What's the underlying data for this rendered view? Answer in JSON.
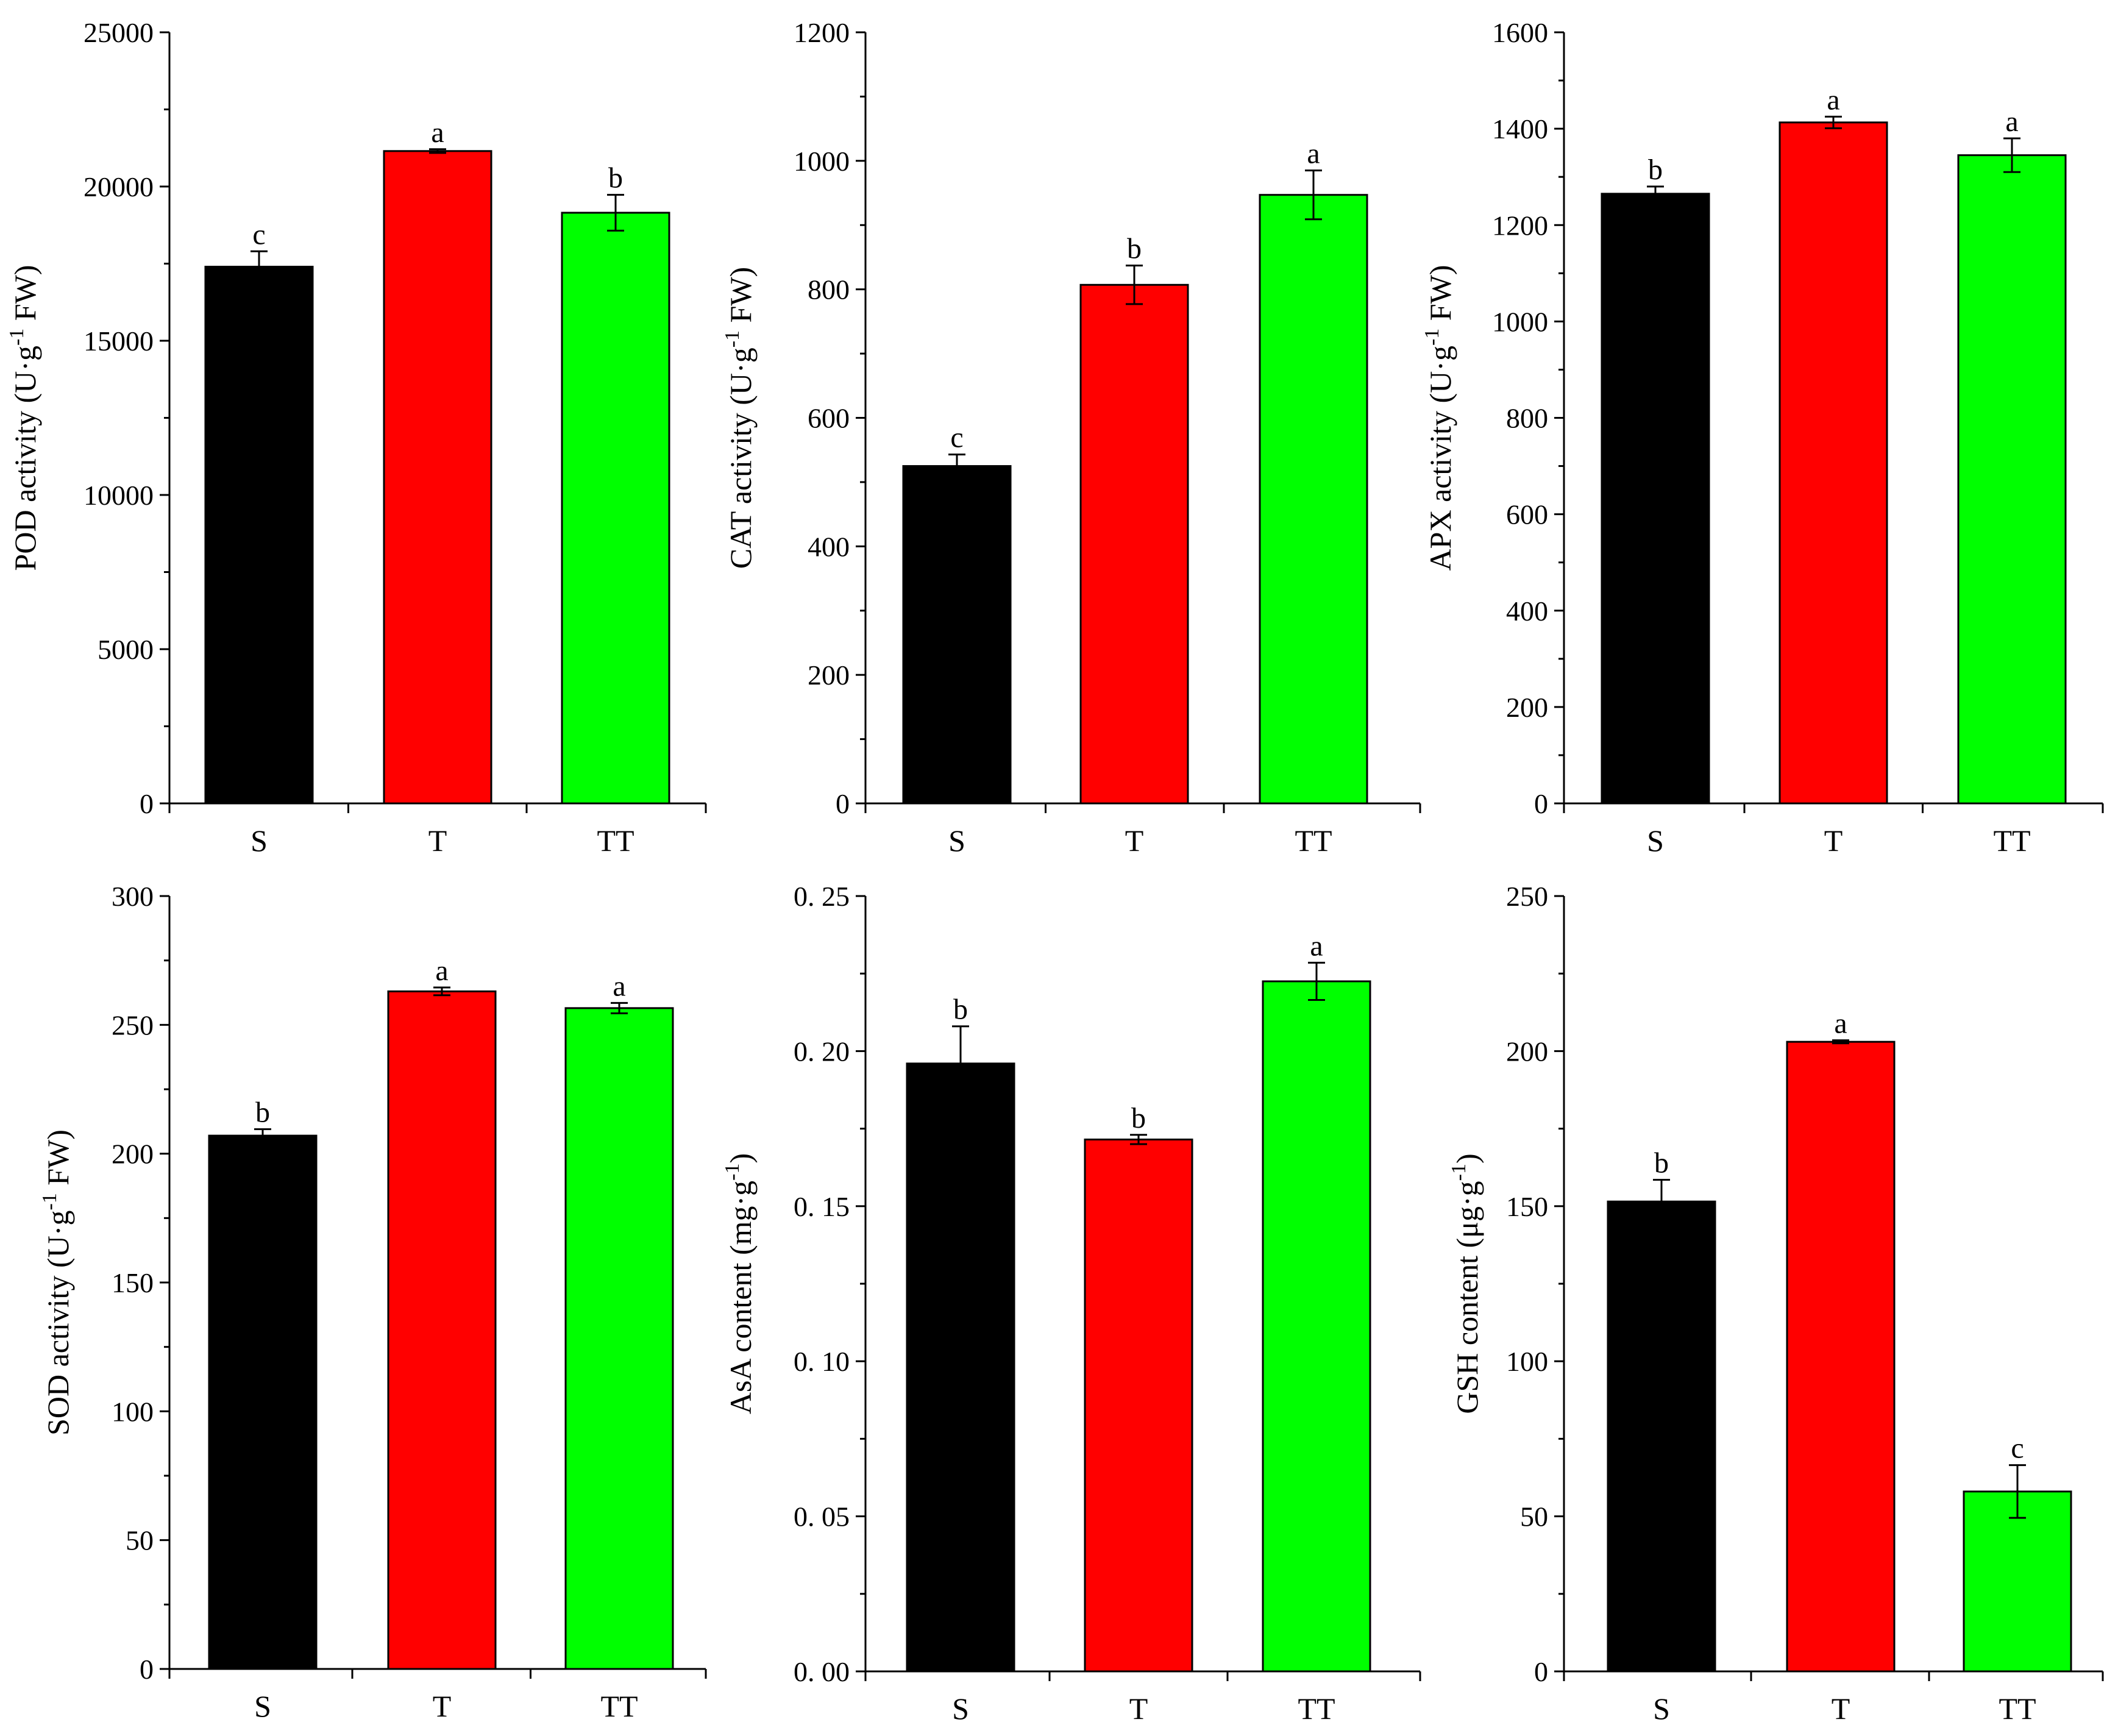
{
  "colors": {
    "S": "#000000",
    "T": "#ff0000",
    "TT": "#00ff00",
    "axis": "#000000"
  },
  "chart_data": [
    {
      "id": "pod",
      "type": "bar",
      "ylabel_prefix": "POD activity (U·g",
      "ylabel_sup": "-1",
      "ylabel_suffix": " FW)",
      "categories": [
        "S",
        "T",
        "TT"
      ],
      "values": [
        17400,
        21150,
        19150
      ],
      "errors": [
        500,
        60,
        580
      ],
      "letters": [
        "c",
        "a",
        "b"
      ],
      "ylim": [
        0,
        25000
      ],
      "ticks": [
        0,
        5000,
        10000,
        15000,
        20000,
        25000
      ],
      "tick_labels": [
        "0",
        "5000",
        "10000",
        "15000",
        "20000",
        "25000"
      ]
    },
    {
      "id": "cat",
      "type": "bar",
      "ylabel_prefix": "CAT activity (U·g",
      "ylabel_sup": "-1",
      "ylabel_suffix": " FW)",
      "categories": [
        "S",
        "T",
        "TT"
      ],
      "values": [
        525,
        807,
        947
      ],
      "errors": [
        18,
        30,
        38
      ],
      "letters": [
        "c",
        "b",
        "a"
      ],
      "ylim": [
        0,
        1200
      ],
      "ticks": [
        0,
        200,
        400,
        600,
        800,
        1000,
        1200
      ],
      "tick_labels": [
        "0",
        "200",
        "400",
        "600",
        "800",
        "1000",
        "1200"
      ]
    },
    {
      "id": "apx",
      "type": "bar",
      "ylabel_prefix": "APX activity (U·g",
      "ylabel_sup": "-1",
      "ylabel_suffix": " FW)",
      "categories": [
        "S",
        "T",
        "TT"
      ],
      "values": [
        1265,
        1413,
        1345
      ],
      "errors": [
        15,
        12,
        35
      ],
      "letters": [
        "b",
        "a",
        "a"
      ],
      "ylim": [
        0,
        1600
      ],
      "ticks": [
        0,
        200,
        400,
        600,
        800,
        1000,
        1200,
        1400,
        1600
      ],
      "tick_labels": [
        "0",
        "200",
        "400",
        "600",
        "800",
        "1000",
        "1200",
        "1400",
        "1600"
      ]
    },
    {
      "id": "sod",
      "type": "bar",
      "ylabel_prefix": "SOD activity (U·g",
      "ylabel_sup": "-1",
      "ylabel_suffix": " FW)",
      "categories": [
        "S",
        "T",
        "TT"
      ],
      "values": [
        207,
        263,
        256.5
      ],
      "errors": [
        2.5,
        1.5,
        2
      ],
      "letters": [
        "b",
        "a",
        "a"
      ],
      "ylim": [
        0,
        300
      ],
      "ticks": [
        0,
        50,
        100,
        150,
        200,
        250,
        300
      ],
      "tick_labels": [
        "0",
        "50",
        "100",
        "150",
        "200",
        "250",
        "300"
      ]
    },
    {
      "id": "asa",
      "type": "bar",
      "ylabel_prefix": "AsA content (mg·g",
      "ylabel_sup": "-1",
      "ylabel_suffix": ")",
      "categories": [
        "S",
        "T",
        "TT"
      ],
      "values": [
        0.196,
        0.1715,
        0.2225
      ],
      "errors": [
        0.012,
        0.0015,
        0.006
      ],
      "letters": [
        "b",
        "b",
        "a"
      ],
      "ylim": [
        0,
        0.25
      ],
      "ticks": [
        0,
        0.05,
        0.1,
        0.15,
        0.2,
        0.25
      ],
      "tick_labels": [
        "0. 00",
        "0. 05",
        "0. 10",
        "0. 15",
        "0. 20",
        "0. 25"
      ]
    },
    {
      "id": "gsh",
      "type": "bar",
      "ylabel_prefix": "GSH content (μg·g",
      "ylabel_sup": "-1",
      "ylabel_suffix": ")",
      "categories": [
        "S",
        "T",
        "TT"
      ],
      "values": [
        151.5,
        203,
        58
      ],
      "errors": [
        7,
        0.5,
        8.5
      ],
      "letters": [
        "b",
        "a",
        "c"
      ],
      "ylim": [
        0,
        250
      ],
      "ticks": [
        0,
        50,
        100,
        150,
        200,
        250
      ],
      "tick_labels": [
        "0",
        "50",
        "100",
        "150",
        "200",
        "250"
      ]
    }
  ]
}
